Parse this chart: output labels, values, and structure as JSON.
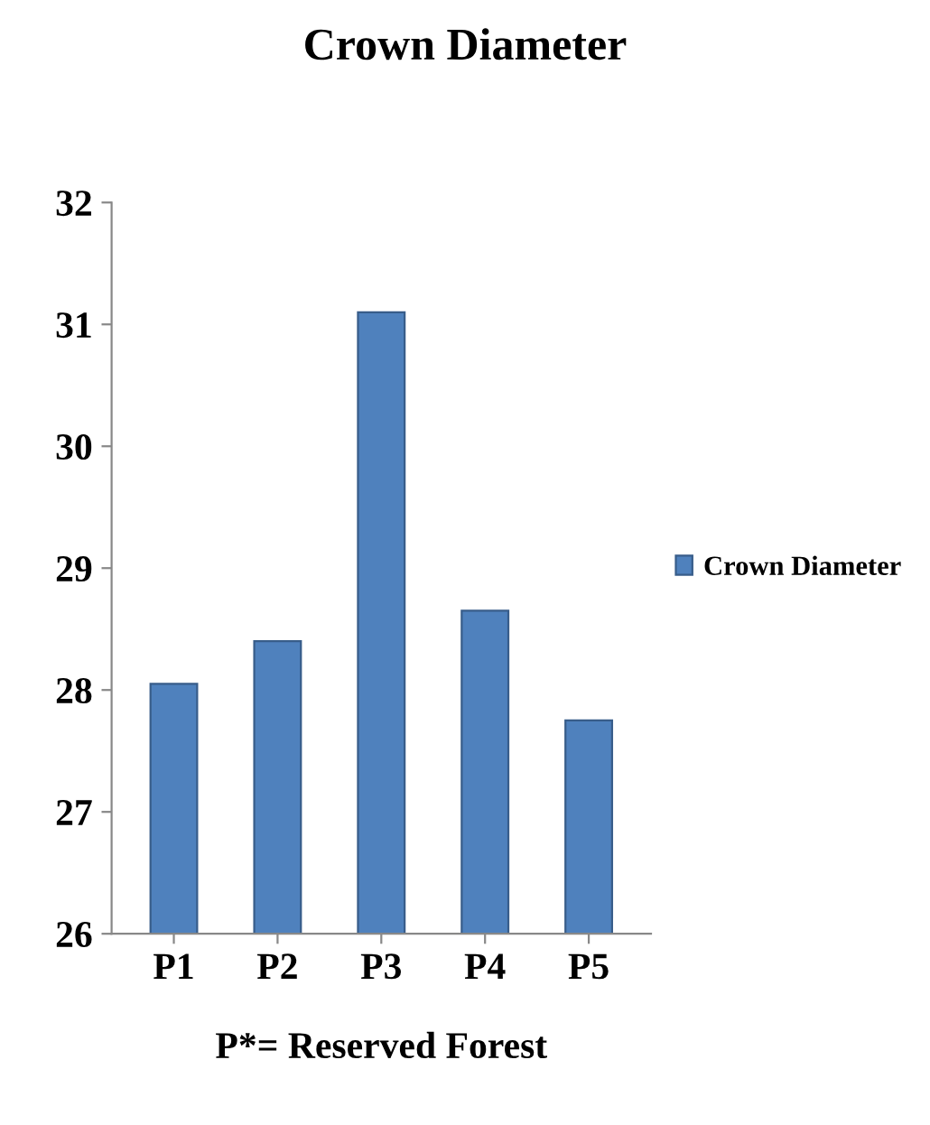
{
  "chart_data": {
    "type": "bar",
    "title": "Crown Diameter",
    "xlabel": "P*= Reserved Forest",
    "categories": [
      "P1",
      "P2",
      "P3",
      "P4",
      "P5"
    ],
    "series": [
      {
        "name": "Crown Diameter",
        "color": "#4f81bd",
        "values": [
          28.05,
          28.4,
          31.1,
          28.65,
          27.75
        ]
      }
    ],
    "ylim": [
      26,
      32
    ],
    "yticks": [
      26,
      27,
      28,
      29,
      30,
      31,
      32
    ],
    "grid": false,
    "legend": "right"
  }
}
